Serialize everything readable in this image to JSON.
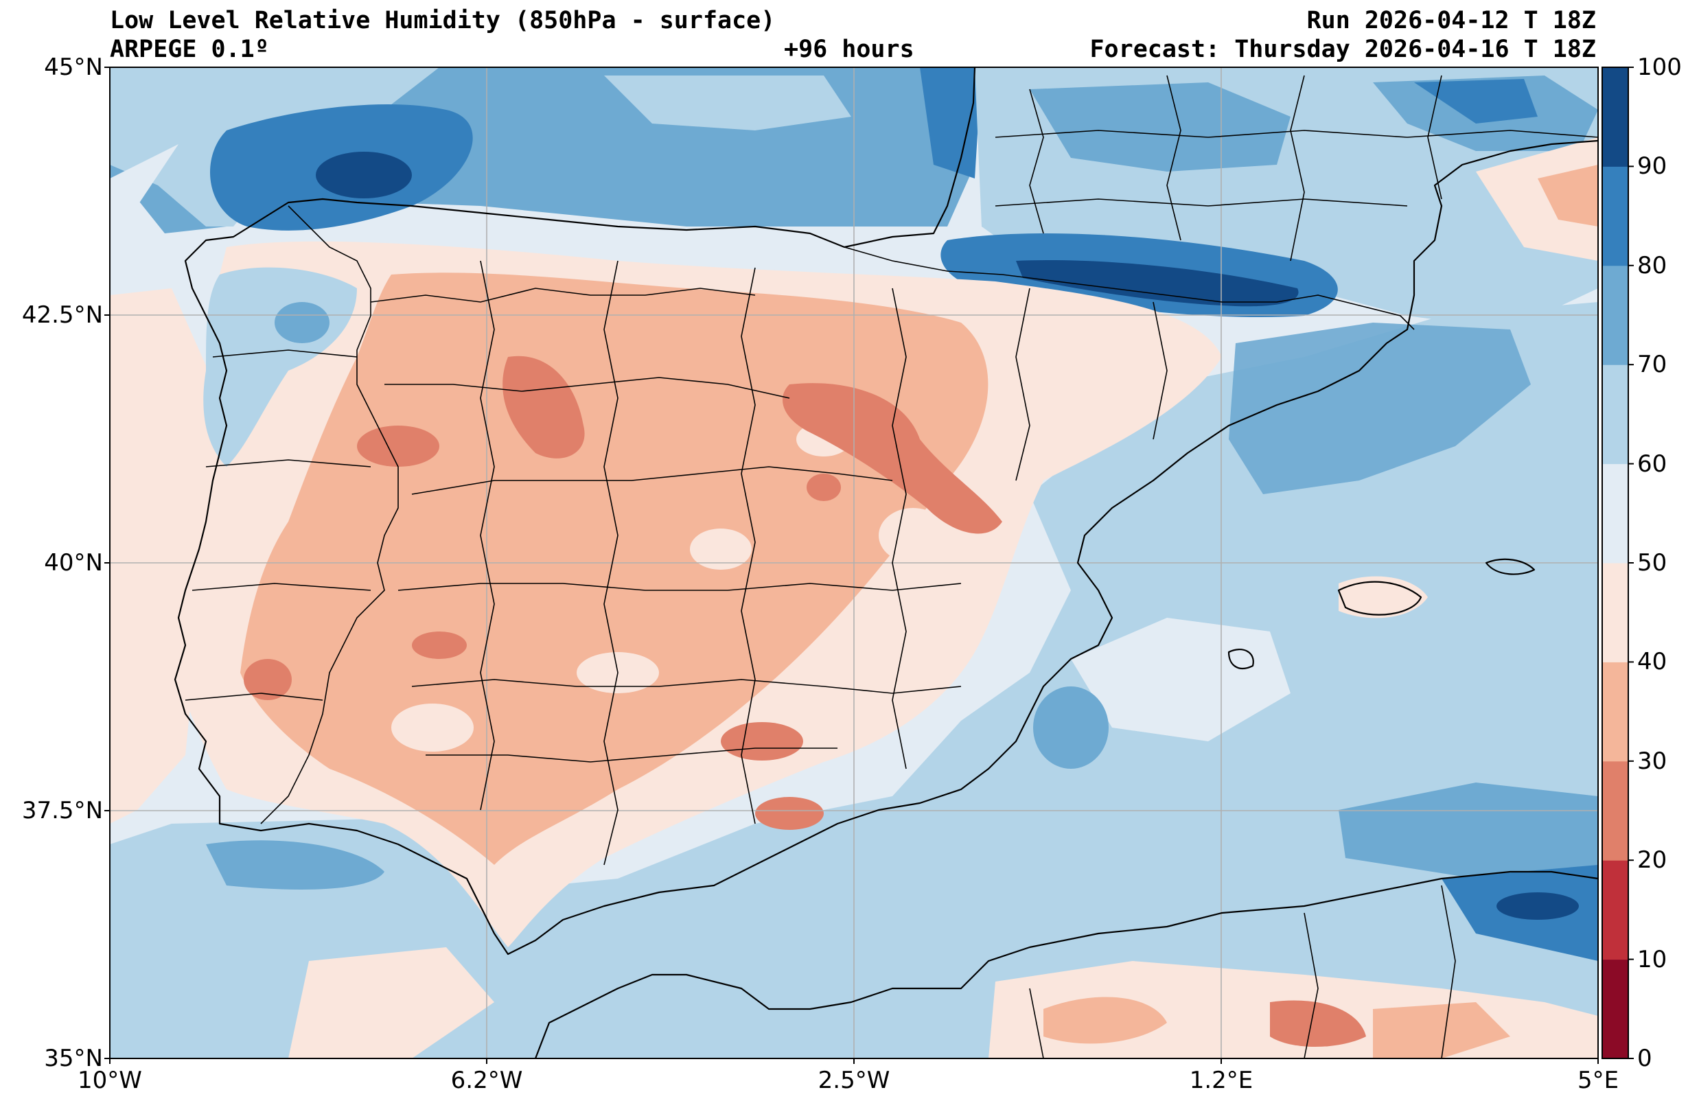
{
  "header": {
    "title_line1": "Low Level Relative Humidity (850hPa - surface)",
    "title_line2": "ARPEGE 0.1º",
    "lead_time": "+96 hours",
    "run": "Run 2026-04-12 T 18Z",
    "forecast": "Forecast: Thursday 2026-04-16 T 18Z"
  },
  "axes": {
    "lat_ticks": [
      "45°N",
      "42.5°N",
      "40°N",
      "37.5°N",
      "35°N"
    ],
    "lon_ticks": [
      "10°W",
      "6.2°W",
      "2.5°W",
      "1.2°E",
      "5°E"
    ]
  },
  "map": {
    "region": "Iberian Peninsula",
    "variable": "relative humidity",
    "units": "%",
    "lat_range": [
      35,
      45
    ],
    "lon_range": [
      -10,
      5
    ]
  },
  "colorbar": {
    "levels": [
      "0",
      "10",
      "20",
      "30",
      "40",
      "50",
      "60",
      "70",
      "80",
      "90",
      "100"
    ],
    "colors": [
      "#8b0a26",
      "#c0303a",
      "#e0806a",
      "#f4b69a",
      "#fae6dd",
      "#e3ecf4",
      "#b3d4e8",
      "#6eaad2",
      "#3580bd",
      "#134a86"
    ]
  }
}
